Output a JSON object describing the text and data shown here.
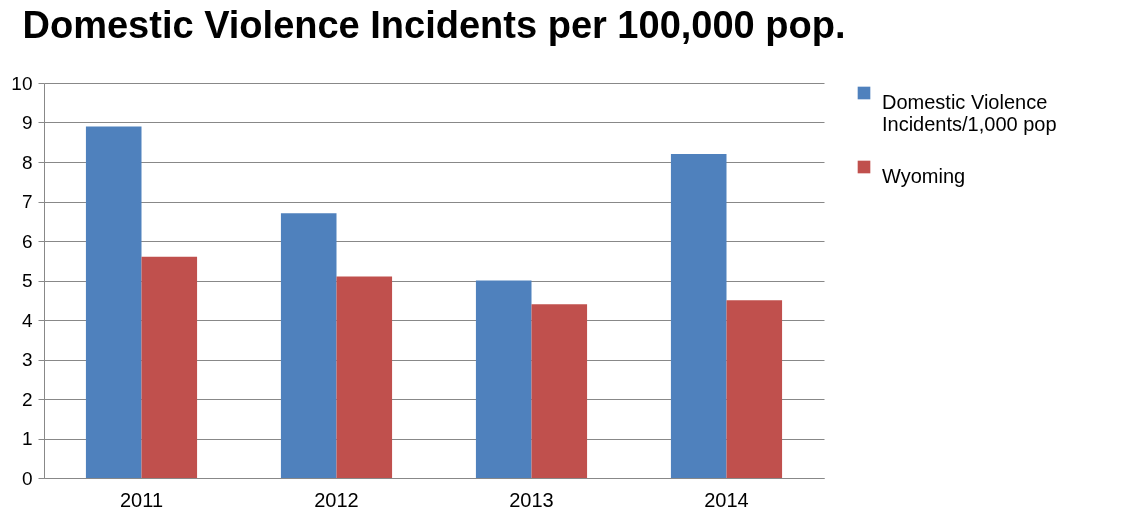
{
  "chart_data": {
    "type": "bar",
    "title": "Domestic Violence Incidents per 100,000 pop.",
    "categories": [
      "2011",
      "2012",
      "2013",
      "2014"
    ],
    "series": [
      {
        "name": "Domestic Violence Incidents/1,000 pop",
        "color": "#4f81bd",
        "values": [
          8.9,
          6.7,
          5.0,
          8.2
        ]
      },
      {
        "name": "Wyoming",
        "color": "#c0504d",
        "values": [
          5.6,
          5.1,
          4.4,
          4.5
        ]
      }
    ],
    "ylim": [
      0,
      10
    ],
    "yticks": [
      0,
      1,
      2,
      3,
      4,
      5,
      6,
      7,
      8,
      9,
      10
    ],
    "grid": "y",
    "legend": "right"
  }
}
